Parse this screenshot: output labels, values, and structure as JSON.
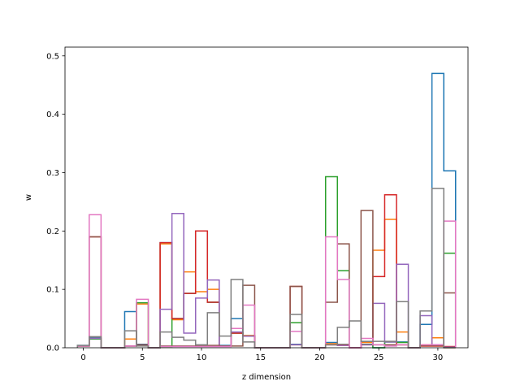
{
  "chart_data": {
    "type": "line",
    "subtype": "step-histogram",
    "title": "",
    "xlabel": "z dimension",
    "ylabel": "w",
    "xlim": [
      -1.55,
      32.55
    ],
    "ylim": [
      0,
      0.515
    ],
    "x_ticks": [
      0,
      5,
      10,
      15,
      20,
      25,
      30
    ],
    "y_ticks": [
      0.0,
      0.1,
      0.2,
      0.3,
      0.4,
      0.5
    ],
    "x_tick_labels": [
      "0",
      "5",
      "10",
      "15",
      "20",
      "25",
      "30"
    ],
    "y_tick_labels": [
      "0.0",
      "0.1",
      "0.2",
      "0.3",
      "0.4",
      "0.5"
    ],
    "grid": false,
    "legend": false,
    "x": [
      0,
      1,
      2,
      3,
      4,
      5,
      6,
      7,
      8,
      9,
      10,
      11,
      12,
      13,
      14,
      15,
      16,
      17,
      18,
      19,
      20,
      21,
      22,
      23,
      24,
      25,
      26,
      27,
      28,
      29,
      30,
      31
    ],
    "series": [
      {
        "color": "#1f77b4",
        "values": [
          0.004,
          0.017,
          0,
          0,
          0.062,
          0.006,
          0,
          0.18,
          0.05,
          0.093,
          0.2,
          0.078,
          0.004,
          0.05,
          0.02,
          0,
          0,
          0,
          0.006,
          0,
          0,
          0.009,
          0.006,
          0,
          0.01,
          0,
          0.01,
          0.01,
          0,
          0.04,
          0.47,
          0.303
        ]
      },
      {
        "color": "#ff7f0e",
        "values": [
          0.003,
          0.016,
          0,
          0,
          0.015,
          0.075,
          0,
          0.178,
          0.048,
          0.13,
          0.096,
          0.1,
          0.003,
          0.025,
          0.021,
          0,
          0,
          0,
          0.005,
          0,
          0,
          0.007,
          0.005,
          0,
          0.009,
          0.167,
          0.22,
          0.027,
          0,
          0.005,
          0.017,
          0
        ]
      },
      {
        "color": "#2ca02c",
        "values": [
          0.003,
          0.015,
          0,
          0,
          0.003,
          0.077,
          0,
          0.002,
          0.05,
          0.093,
          0.2,
          0.078,
          0.003,
          0.025,
          0.02,
          0,
          0,
          0,
          0.043,
          0,
          0,
          0.293,
          0.132,
          0,
          0.006,
          0,
          0.01,
          0.009,
          0,
          0.003,
          0.003,
          0.162
        ]
      },
      {
        "color": "#d62728",
        "values": [
          0.003,
          0.19,
          0,
          0,
          0.003,
          0.005,
          0,
          0.18,
          0.05,
          0.093,
          0.2,
          0.078,
          0.003,
          0.025,
          0.02,
          0,
          0,
          0,
          0.105,
          0,
          0,
          0.005,
          0.004,
          0,
          0.005,
          0.122,
          0.262,
          0.005,
          0,
          0.003,
          0.003,
          0.002
        ]
      },
      {
        "color": "#9467bd",
        "values": [
          0.003,
          0.016,
          0,
          0,
          0.003,
          0.005,
          0,
          0.066,
          0.23,
          0.025,
          0.085,
          0.116,
          0.003,
          0.027,
          0.02,
          0,
          0,
          0,
          0.005,
          0,
          0,
          0.005,
          0.004,
          0,
          0.005,
          0.076,
          0.01,
          0.143,
          0,
          0.055,
          0.005,
          0.001
        ]
      },
      {
        "color": "#8c564b",
        "values": [
          0.003,
          0.19,
          0,
          0,
          0.003,
          0.005,
          0,
          0.003,
          0.003,
          0.003,
          0.004,
          0.004,
          0.003,
          0.003,
          0.107,
          0,
          0,
          0,
          0.105,
          0,
          0,
          0.078,
          0.178,
          0,
          0.235,
          0.005,
          0.005,
          0.005,
          0,
          0.004,
          0.004,
          0.094
        ]
      },
      {
        "color": "#e377c2",
        "values": [
          0.003,
          0.228,
          0,
          0,
          0.003,
          0.083,
          0,
          0.002,
          0.002,
          0.002,
          0.002,
          0.002,
          0.002,
          0.033,
          0.073,
          0,
          0,
          0,
          0.028,
          0,
          0,
          0.19,
          0.117,
          0,
          0.016,
          0.005,
          0.003,
          0.005,
          0,
          0.005,
          0.005,
          0.217
        ]
      },
      {
        "color": "#7f7f7f",
        "values": [
          0.004,
          0.019,
          0,
          0,
          0.029,
          0.003,
          0,
          0.027,
          0.018,
          0.013,
          0.005,
          0.06,
          0.02,
          0.117,
          0.01,
          0,
          0,
          0,
          0.057,
          0,
          0,
          0.005,
          0.035,
          0.046,
          0.011,
          0.011,
          0.011,
          0.079,
          0,
          0.063,
          0.273,
          0
        ]
      }
    ]
  }
}
